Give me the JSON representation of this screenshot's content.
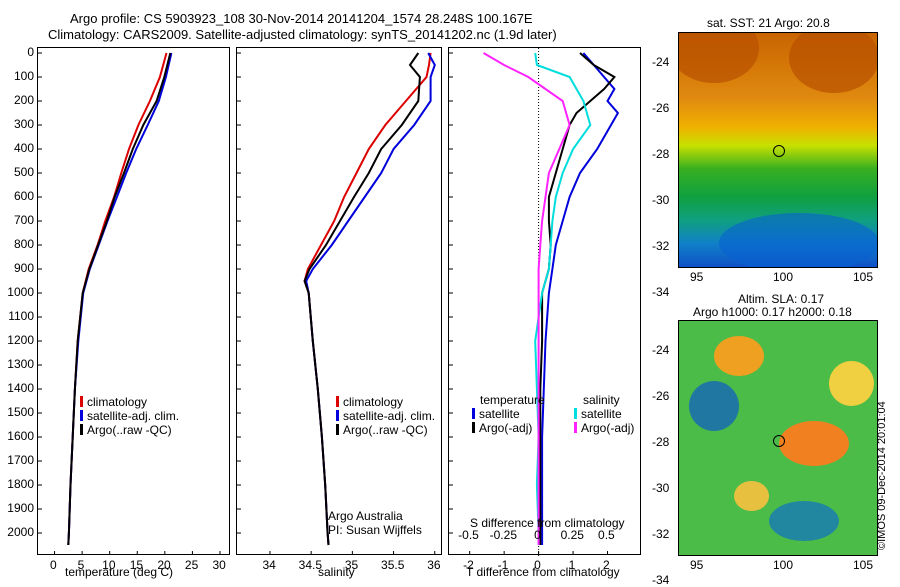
{
  "header": {
    "line1": "Argo profile: CS 5903923_108 30-Nov-2014 20141204_1574 28.248S 100.167E",
    "line2": "Climatology: CARS2009. Satellite-adjusted climatology: synTS_20141202.nc (1.9d later)"
  },
  "chart_data": [
    {
      "type": "line",
      "ylabel": "",
      "xlabel": "temperature (deg C)",
      "xlim": [
        -3,
        32
      ],
      "ylim": [
        2100,
        0
      ],
      "xticks": [
        "0",
        "5",
        "10",
        "15",
        "20",
        "25",
        "30"
      ],
      "yticks": [
        "0",
        "100",
        "200",
        "300",
        "400",
        "500",
        "600",
        "700",
        "800",
        "900",
        "1000",
        "1100",
        "1200",
        "1300",
        "1400",
        "1500",
        "1600",
        "1700",
        "1800",
        "1900",
        "2000"
      ],
      "series": [
        {
          "name": "climatology",
          "color": "#dd0000",
          "depth": [
            0,
            100,
            200,
            300,
            400,
            500,
            600,
            700,
            800,
            900,
            1000,
            1200,
            1400,
            1600,
            1800,
            2000,
            2050
          ],
          "values": [
            20.3,
            19.1,
            17.3,
            15.2,
            13.5,
            12.1,
            10.8,
            9.2,
            7.8,
            6.2,
            5.1,
            4.2,
            3.7,
            3.3,
            2.9,
            2.6,
            2.5
          ]
        },
        {
          "name": "satellite-adj. clim.",
          "color": "#0000dd",
          "depth": [
            0,
            100,
            200,
            300,
            400,
            500,
            600,
            700,
            800,
            900,
            1000,
            1200,
            1400,
            1600,
            1800,
            2000,
            2050
          ],
          "values": [
            21.2,
            20.2,
            18.9,
            16.9,
            14.8,
            13.0,
            11.3,
            9.6,
            8.0,
            6.4,
            5.2,
            4.3,
            3.7,
            3.3,
            2.9,
            2.6,
            2.5
          ]
        },
        {
          "name": "Argo(..raw -QC)",
          "color": "#000000",
          "depth": [
            0,
            100,
            200,
            300,
            400,
            500,
            600,
            700,
            800,
            900,
            1000,
            1200,
            1400,
            1600,
            1800,
            2000,
            2050
          ],
          "values": [
            21.0,
            19.9,
            18.5,
            16.1,
            14.2,
            12.6,
            10.9,
            9.5,
            7.9,
            6.3,
            5.1,
            4.2,
            3.7,
            3.3,
            2.9,
            2.6,
            2.5
          ]
        }
      ]
    },
    {
      "type": "line",
      "xlabel": "salinity",
      "xlim": [
        33.6,
        36.1
      ],
      "ylim": [
        2100,
        0
      ],
      "xticks": [
        "34",
        "34.5",
        "35",
        "35.5",
        "36"
      ],
      "series": [
        {
          "name": "climatology",
          "color": "#dd0000",
          "depth": [
            0,
            50,
            100,
            200,
            300,
            400,
            500,
            600,
            700,
            800,
            900,
            950,
            1000,
            1200,
            1400,
            1600,
            1800,
            2000,
            2050
          ],
          "values": [
            35.95,
            35.93,
            35.9,
            35.65,
            35.4,
            35.2,
            35.05,
            34.9,
            34.78,
            34.62,
            34.46,
            34.42,
            34.47,
            34.52,
            34.58,
            34.63,
            34.67,
            34.7,
            34.71
          ]
        },
        {
          "name": "satellite-adj. clim.",
          "color": "#0000dd",
          "depth": [
            0,
            50,
            100,
            200,
            300,
            400,
            500,
            600,
            700,
            800,
            900,
            950,
            1000,
            1200,
            1400,
            1600,
            1800,
            2000,
            2050
          ],
          "values": [
            35.92,
            36.0,
            35.95,
            35.95,
            35.75,
            35.5,
            35.35,
            35.15,
            34.95,
            34.75,
            34.52,
            34.44,
            34.47,
            34.52,
            34.58,
            34.63,
            34.67,
            34.7,
            34.71
          ]
        },
        {
          "name": "Argo(..raw -QC)",
          "color": "#000000",
          "depth": [
            0,
            50,
            100,
            200,
            300,
            400,
            500,
            600,
            700,
            800,
            900,
            950,
            1000,
            1200,
            1400,
            1600,
            1800,
            2000,
            2050
          ],
          "values": [
            35.8,
            35.7,
            35.82,
            35.8,
            35.6,
            35.35,
            35.2,
            35.02,
            34.85,
            34.68,
            34.48,
            34.42,
            34.47,
            34.52,
            34.58,
            34.63,
            34.67,
            34.7,
            34.71
          ]
        }
      ]
    },
    {
      "type": "line",
      "xlabel": "T difference from climatology",
      "xlabel2": "S difference from climatology",
      "xlim": [
        -2.6,
        3.0
      ],
      "ylim": [
        2100,
        0
      ],
      "xticks": [
        "-2",
        "-1",
        "0",
        "1",
        "2"
      ],
      "xticks2": [
        "-0.5",
        "-0.25",
        "0",
        "0.25",
        "0.5"
      ],
      "series": [
        {
          "name": "temperature satellite",
          "color": "#0000dd",
          "depth": [
            0,
            50,
            100,
            150,
            200,
            250,
            300,
            400,
            500,
            600,
            700,
            800,
            900,
            1000,
            1200,
            1400,
            1600,
            1800,
            2000,
            2050
          ],
          "values": [
            1.3,
            1.6,
            1.9,
            2.2,
            2.0,
            2.3,
            2.1,
            1.7,
            1.2,
            0.9,
            0.7,
            0.5,
            0.4,
            0.3,
            0.2,
            0.15,
            0.1,
            0.1,
            0.1,
            0.1
          ]
        },
        {
          "name": "temperature Argo(-adj)",
          "color": "#000000",
          "depth": [
            0,
            50,
            100,
            150,
            200,
            250,
            300,
            400,
            500,
            600,
            700,
            800,
            900,
            1000,
            1200,
            1400,
            1600,
            1800,
            2000,
            2050
          ],
          "values": [
            1.2,
            1.6,
            2.2,
            1.9,
            1.5,
            1.1,
            0.9,
            0.7,
            0.5,
            0.3,
            0.3,
            0.35,
            0.3,
            0.1,
            0.1,
            0.05,
            0.05,
            0.05,
            0.05,
            0.05
          ]
        },
        {
          "name": "salinity satellite",
          "color": "#00dddd",
          "depth": [
            0,
            50,
            100,
            200,
            300,
            400,
            500,
            600,
            700,
            800,
            900,
            1000,
            1200,
            1400,
            1600,
            1800,
            2000,
            2050
          ],
          "values": [
            -0.1,
            -0.05,
            0.9,
            1.3,
            1.5,
            1.0,
            0.7,
            0.5,
            0.4,
            0.35,
            0.3,
            0.1,
            -0.1,
            -0.05,
            0.0,
            -0.05,
            0.0,
            0.0
          ]
        },
        {
          "name": "salinity Argo(-adj)",
          "color": "#ff22ff",
          "depth": [
            0,
            50,
            100,
            200,
            300,
            400,
            500,
            600,
            700,
            800,
            900,
            1000,
            1200,
            1400,
            1600,
            1800,
            2000,
            2050
          ],
          "values": [
            -1.6,
            -1.0,
            -0.3,
            0.7,
            0.9,
            0.6,
            0.3,
            0.2,
            0.1,
            0.05,
            0.0,
            0.0,
            0.0,
            0.0,
            0.0,
            0.0,
            0.0,
            0.0
          ]
        }
      ]
    }
  ],
  "legend1": {
    "items": [
      "climatology",
      "satellite-adj. clim.",
      "Argo(..raw -QC)"
    ],
    "colors": [
      "#dd0000",
      "#0000dd",
      "#000000"
    ]
  },
  "legend3": {
    "temp_head": "temperature",
    "sal_head": "salinity",
    "temp_items": [
      "satellite",
      "Argo(-adj)"
    ],
    "sal_items": [
      "satellite",
      "Argo(-adj)"
    ]
  },
  "notes": {
    "line1": "Argo Australia",
    "line2": "PI: Susan Wijffels"
  },
  "map_sst": {
    "title": "sat. SST: 21  Argo: 20.8",
    "yticks": [
      "-24",
      "-26",
      "-28",
      "-30",
      "-32",
      "-34"
    ],
    "xticks": [
      "95",
      "100",
      "105"
    ]
  },
  "map_sla": {
    "title1": "Altim. SLA: 0.17",
    "title2": "Argo h1000: 0.17 h2000: 0.18",
    "yticks": [
      "-24",
      "-26",
      "-28",
      "-30",
      "-32",
      "-34"
    ],
    "xticks": [
      "95",
      "100",
      "105"
    ]
  },
  "stamp": "©IMOS 09-Dec-2014 20:01:04"
}
